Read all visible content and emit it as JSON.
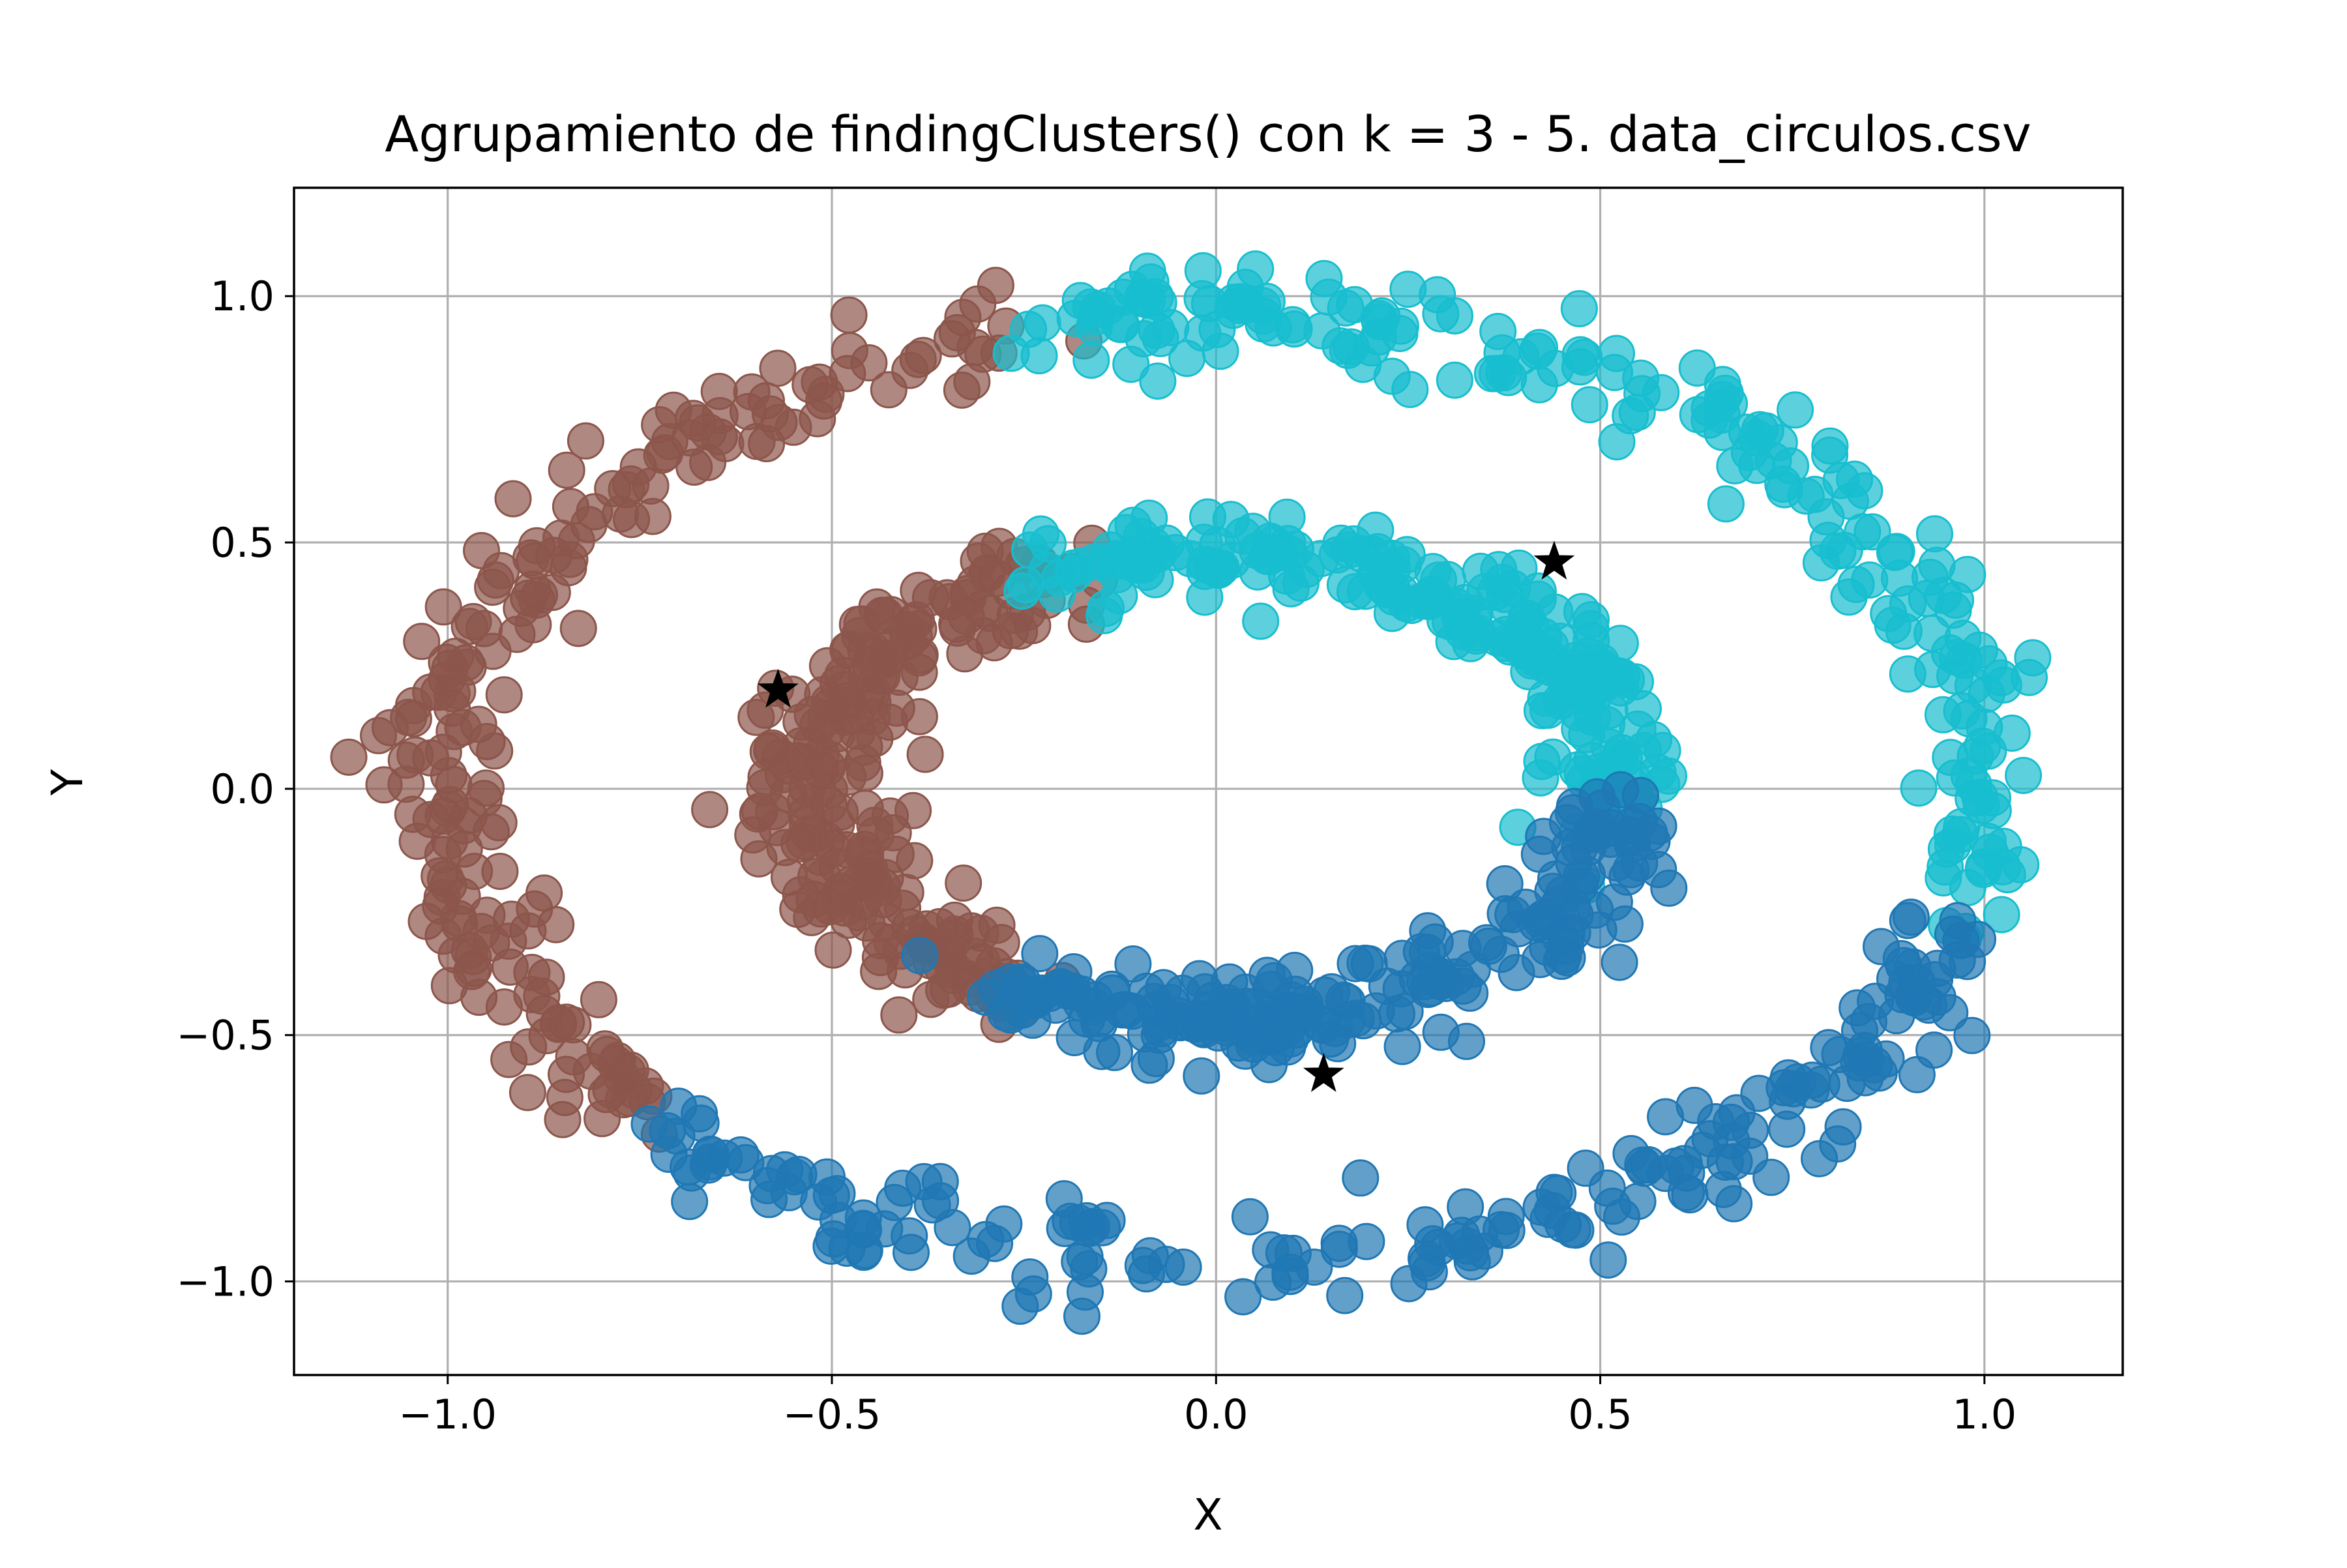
{
  "chart_data": {
    "type": "scatter",
    "title": "Agrupamiento de findingClusters() con k = 3 - 5. data_circulos.csv",
    "xlabel": "X",
    "ylabel": "Y",
    "xlim": [
      -1.2,
      1.18
    ],
    "ylim": [
      -1.19,
      1.22
    ],
    "grid": true,
    "x_ticks": [
      -1.0,
      -0.5,
      0.0,
      0.5,
      1.0
    ],
    "x_tick_labels": [
      "−1.0",
      "−0.5",
      "0.0",
      "0.5",
      "1.0"
    ],
    "y_ticks": [
      -1.0,
      -0.5,
      0.0,
      0.5,
      1.0
    ],
    "y_tick_labels": [
      "−1.0",
      "−0.5",
      "0.0",
      "0.5",
      "1.0"
    ],
    "clusters": [
      {
        "color": "#8c564b",
        "description": "outer ring arc from about 105° to 224° plus inner ring arc from about 113° to 238°",
        "outer_ring": {
          "center": [
            0,
            0
          ],
          "radii": [
            1.0,
            0.97
          ],
          "angle_range_deg": [
            105,
            224
          ]
        },
        "inner_ring": {
          "center": [
            0,
            0
          ],
          "radii": [
            0.52,
            0.48
          ],
          "angle_range_deg": [
            113,
            238
          ]
        }
      },
      {
        "color": "#17becf",
        "description": "outer ring arc from about -18° to 105° plus inner ring arc from about -5° to 113°",
        "outer_ring": {
          "center": [
            0,
            0
          ],
          "radii": [
            1.0,
            0.97
          ],
          "angle_range_deg": [
            -18,
            105
          ]
        },
        "inner_ring": {
          "center": [
            0,
            0
          ],
          "radii": [
            0.52,
            0.48
          ],
          "angle_range_deg": [
            -5,
            113
          ]
        }
      },
      {
        "color": "#1f77b4",
        "description": "outer ring arc from about 224° to 342° plus inner ring arc from about 238° to 355°",
        "outer_ring": {
          "center": [
            0,
            0
          ],
          "radii": [
            1.0,
            0.97
          ],
          "angle_range_deg": [
            224,
            342
          ]
        },
        "inner_ring": {
          "center": [
            0,
            0
          ],
          "radii": [
            0.52,
            0.48
          ],
          "angle_range_deg": [
            238,
            355
          ]
        }
      }
    ],
    "centroids": [
      {
        "x": -0.57,
        "y": 0.2
      },
      {
        "x": 0.44,
        "y": 0.46
      },
      {
        "x": 0.14,
        "y": -0.58
      }
    ],
    "centroid_marker": "star",
    "centroid_color": "#000000",
    "point_alpha": 0.7
  }
}
